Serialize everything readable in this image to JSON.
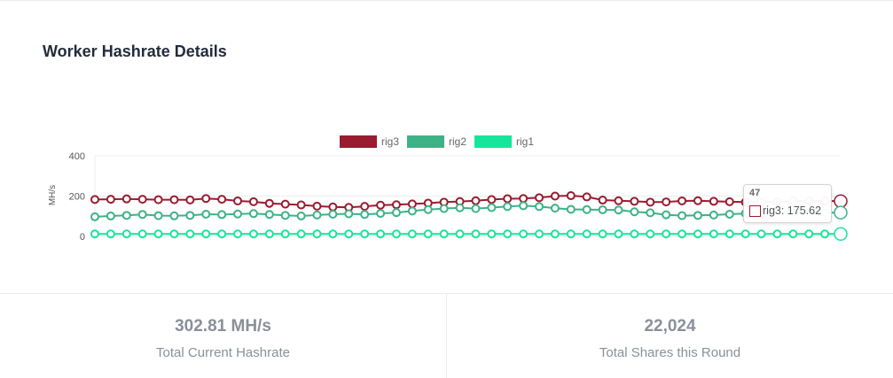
{
  "card": {
    "title": "Worker Hashrate Details"
  },
  "chart_data": {
    "type": "line",
    "title": "",
    "xlabel": "",
    "ylabel": "MH/s",
    "ylim": [
      0,
      400
    ],
    "y_ticks": [
      "400",
      "200",
      "0"
    ],
    "grid": true,
    "legend_position": "top-center",
    "x": [
      1,
      2,
      3,
      4,
      5,
      6,
      7,
      8,
      9,
      10,
      11,
      12,
      13,
      14,
      15,
      16,
      17,
      18,
      19,
      20,
      21,
      22,
      23,
      24,
      25,
      26,
      27,
      28,
      29,
      30,
      31,
      32,
      33,
      34,
      35,
      36,
      37,
      38,
      39,
      40,
      41,
      42,
      43,
      44,
      45,
      46,
      47,
      48
    ],
    "series": [
      {
        "name": "rig3",
        "color": "#9b1b30",
        "values": [
          183,
          184,
          186,
          184,
          182,
          182,
          181,
          188,
          184,
          176,
          172,
          164,
          160,
          156,
          150,
          146,
          144,
          149,
          155,
          157,
          161,
          165,
          170,
          173,
          177,
          183,
          187,
          188,
          192,
          200,
          202,
          196,
          180,
          177,
          174,
          170,
          171,
          176,
          177,
          174,
          172,
          170,
          170,
          172,
          176,
          175,
          175.62,
          175
        ]
      },
      {
        "name": "rig2",
        "color": "#3db287",
        "values": [
          97,
          101,
          104,
          109,
          103,
          102,
          104,
          110,
          108,
          111,
          113,
          109,
          104,
          101,
          106,
          110,
          112,
          109,
          114,
          118,
          126,
          133,
          138,
          142,
          138,
          143,
          148,
          152,
          148,
          140,
          134,
          133,
          132,
          131,
          122,
          117,
          107,
          103,
          104,
          106,
          110,
          114,
          117,
          118,
          120,
          120,
          118,
          118
        ]
      },
      {
        "name": "rig1",
        "color": "#16e59b",
        "values": [
          12,
          12,
          12,
          12,
          12,
          12,
          12,
          12,
          12,
          12,
          12,
          12,
          12,
          12,
          12,
          12,
          12,
          12,
          12,
          12,
          12,
          12,
          12,
          12,
          12,
          12,
          12,
          12,
          12,
          12,
          12,
          12,
          12,
          12,
          12,
          12,
          12,
          12,
          12,
          12,
          12,
          12,
          12,
          12,
          12,
          12,
          12,
          12
        ]
      }
    ],
    "tooltip": {
      "x_label": "47",
      "series": "rig3",
      "text": "rig3: 175.62"
    }
  },
  "stats": [
    {
      "value": "302.81 MH/s",
      "label": "Total Current Hashrate"
    },
    {
      "value": "22,024",
      "label": "Total Shares this Round"
    }
  ]
}
